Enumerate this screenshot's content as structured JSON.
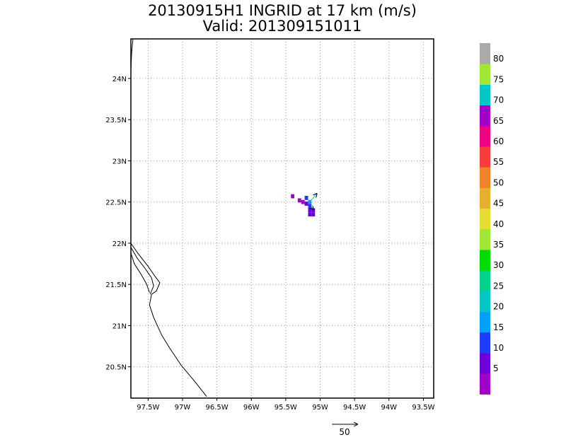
{
  "chart_data": {
    "type": "heatmap",
    "title": "20130915H1 INGRID at 17 km (m/s)",
    "subtitle": "Valid: 201309151011",
    "xlabel": "",
    "ylabel": "",
    "xlim": [
      -97.75,
      -93.35
    ],
    "ylim": [
      20.12,
      24.48
    ],
    "x_ticks": [
      -97.5,
      -97,
      -96.5,
      -96,
      -95.5,
      -95,
      -94.5,
      -94,
      -93.5
    ],
    "x_tick_labels": [
      "97.5W",
      "97W",
      "96.5W",
      "96W",
      "95.5W",
      "95W",
      "94.5W",
      "94W",
      "93.5W"
    ],
    "y_ticks": [
      20.5,
      21,
      21.5,
      22,
      22.5,
      23,
      23.5,
      24
    ],
    "y_tick_labels": [
      "20.5N",
      "21N",
      "21.5N",
      "22N",
      "22.5N",
      "23N",
      "23.5N",
      "24N"
    ],
    "grid": true,
    "colorbar": {
      "tick_labels": [
        "5",
        "10",
        "15",
        "20",
        "25",
        "30",
        "35",
        "40",
        "45",
        "50",
        "55",
        "60",
        "65",
        "70",
        "75",
        "80"
      ],
      "colors": [
        "#a000c8",
        "#6e00dc",
        "#1e3cff",
        "#00a0ff",
        "#00c8c8",
        "#00d28c",
        "#00dc00",
        "#a0e632",
        "#e6dc32",
        "#e6af2d",
        "#f08228",
        "#fa3c3c",
        "#f00082",
        "#a000c8",
        "#00c8c8",
        "#a0e632",
        "#aaaaaa"
      ]
    },
    "cells": [
      {
        "lon": -95.4,
        "lat": 22.57,
        "color": "#a000c8"
      },
      {
        "lon": -95.3,
        "lat": 22.52,
        "color": "#a000c8"
      },
      {
        "lon": -95.25,
        "lat": 22.5,
        "color": "#a000c8"
      },
      {
        "lon": -95.2,
        "lat": 22.48,
        "color": "#6e00dc"
      },
      {
        "lon": -95.2,
        "lat": 22.55,
        "color": "#1e3cff"
      },
      {
        "lon": -95.15,
        "lat": 22.5,
        "color": "#00a0ff"
      },
      {
        "lon": -95.15,
        "lat": 22.45,
        "color": "#1e3cff"
      },
      {
        "lon": -95.1,
        "lat": 22.4,
        "color": "#6e00dc"
      },
      {
        "lon": -95.1,
        "lat": 22.35,
        "color": "#6e00dc"
      },
      {
        "lon": -95.15,
        "lat": 22.35,
        "color": "#6e00dc"
      },
      {
        "lon": -95.15,
        "lat": 22.4,
        "color": "#6e00dc"
      }
    ],
    "vectors": [
      {
        "lon": -95.13,
        "lat": 22.52,
        "u": 0.08,
        "v": 0.08,
        "color": "#00d28c"
      },
      {
        "lon": -95.16,
        "lat": 22.47,
        "u": 0.06,
        "v": -0.06,
        "color": "#1e3cff"
      }
    ],
    "coastline": [
      [
        [
          -97.72,
          24.48
        ],
        [
          -97.74,
          24.3
        ],
        [
          -97.75,
          24.1
        ]
      ],
      [
        [
          -97.75,
          22.0
        ],
        [
          -97.65,
          21.88
        ],
        [
          -97.5,
          21.72
        ],
        [
          -97.4,
          21.6
        ],
        [
          -97.33,
          21.52
        ],
        [
          -97.38,
          21.42
        ],
        [
          -97.45,
          21.38
        ],
        [
          -97.48,
          21.25
        ],
        [
          -97.42,
          21.1
        ],
        [
          -97.3,
          20.88
        ],
        [
          -97.18,
          20.72
        ],
        [
          -97.02,
          20.52
        ],
        [
          -96.82,
          20.32
        ],
        [
          -96.65,
          20.14
        ]
      ],
      [
        [
          -97.75,
          21.95
        ],
        [
          -97.66,
          21.82
        ],
        [
          -97.55,
          21.7
        ],
        [
          -97.45,
          21.58
        ],
        [
          -97.42,
          21.48
        ],
        [
          -97.47,
          21.38
        ]
      ],
      [
        [
          -97.75,
          21.88
        ],
        [
          -97.7,
          21.75
        ],
        [
          -97.6,
          21.62
        ],
        [
          -97.52,
          21.5
        ],
        [
          -97.48,
          21.4
        ]
      ]
    ],
    "reference_vector": {
      "label": "50"
    }
  }
}
